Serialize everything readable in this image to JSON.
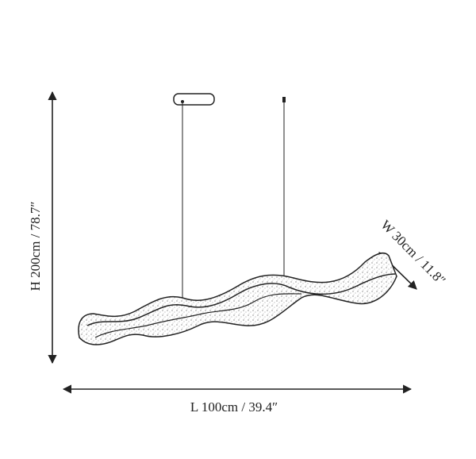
{
  "dimensions": {
    "height": "H 200cm / 78.7″",
    "length": "L 100cm / 39.4″",
    "width": "W 30cm / 11.8″"
  }
}
